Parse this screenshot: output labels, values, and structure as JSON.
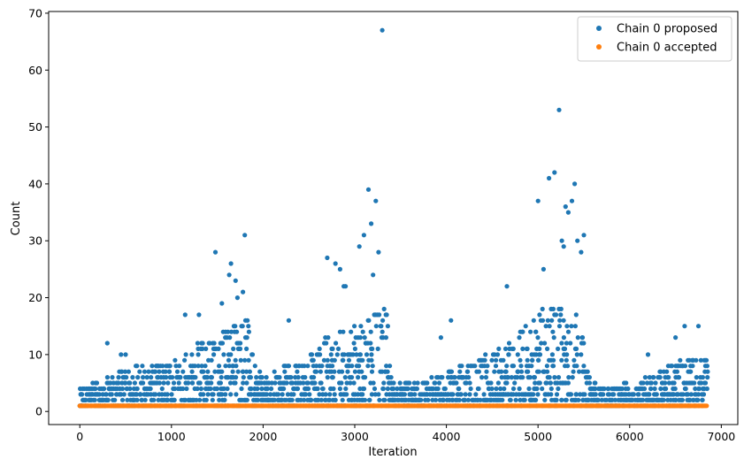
{
  "chart_data": {
    "type": "scatter",
    "title": "",
    "xlabel": "Iteration",
    "ylabel": "Count",
    "xlim": [
      -340,
      7180
    ],
    "ylim": [
      -2.3,
      70.3
    ],
    "xticks": [
      0,
      1000,
      2000,
      3000,
      4000,
      5000,
      6000,
      7000
    ],
    "yticks": [
      0,
      10,
      20,
      30,
      40,
      50,
      60,
      70
    ],
    "grid": false,
    "legend_position": "top-right",
    "colors": {
      "proposed": "#1f77b4",
      "accepted": "#ff7f0e"
    },
    "series": [
      {
        "name": "Chain 0 proposed",
        "key": "proposed",
        "x": [
          0,
          100,
          300,
          450,
          500,
          1150,
          1300,
          1480,
          1550,
          1630,
          1650,
          1700,
          1720,
          1780,
          1800,
          2280,
          2700,
          2790,
          2840,
          2880,
          2900,
          3050,
          3100,
          3150,
          3180,
          3200,
          3230,
          3260,
          3300,
          3340,
          3940,
          4050,
          4660,
          5000,
          5060,
          5120,
          5180,
          5230,
          5260,
          5280,
          5300,
          5330,
          5370,
          5400,
          5430,
          5470,
          5500,
          6200,
          6500,
          6600,
          6750
        ],
        "y": [
          1,
          2,
          12,
          10,
          10,
          17,
          17,
          28,
          19,
          24,
          26,
          23,
          20,
          21,
          31,
          16,
          27,
          26,
          25,
          22,
          22,
          29,
          31,
          39,
          33,
          24,
          37,
          28,
          67,
          17,
          13,
          16,
          22,
          37,
          25,
          41,
          42,
          53,
          30,
          29,
          36,
          35,
          37,
          40,
          30,
          28,
          31,
          10,
          13,
          15,
          15
        ]
      },
      {
        "name": "Chain 0 accepted",
        "key": "accepted",
        "x": [
          0,
          6850
        ],
        "y": [
          1,
          1
        ]
      }
    ]
  }
}
